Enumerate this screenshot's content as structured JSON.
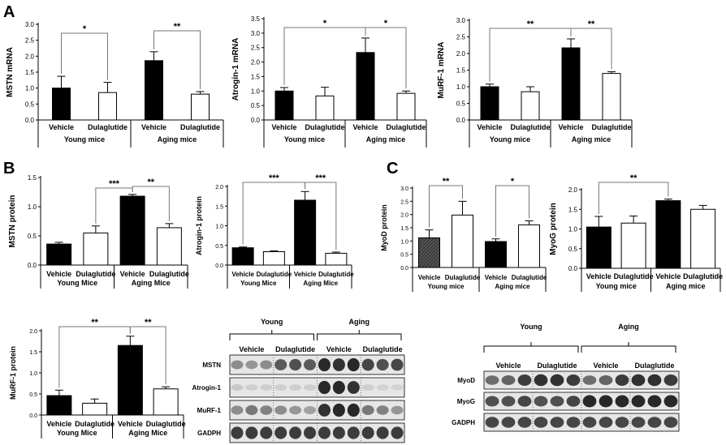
{
  "panel_labels": {
    "a": "A",
    "b": "B",
    "c": "C"
  },
  "blots": [
    {
      "lane_labels": [
        "Vehicle",
        "Dulaglutide",
        "Vehicle",
        "Dulaglutide"
      ],
      "group_labels": [
        "Young",
        "Aging"
      ],
      "bands": [
        {
          "name": "MSTN",
          "label": "MSTN",
          "intensities": [
            0.45,
            0.4,
            0.45,
            0.7,
            0.75,
            0.7,
            0.95,
            0.9,
            0.95,
            0.8,
            0.75,
            0.8
          ]
        },
        {
          "name": "Atrogin-1",
          "label": "Atrogin-1",
          "intensities": [
            0.15,
            0.12,
            0.12,
            0.12,
            0.12,
            0.12,
            0.95,
            0.95,
            0.9,
            0.12,
            0.1,
            0.1
          ]
        },
        {
          "name": "MuRF-1",
          "label": "MuRF-1",
          "intensities": [
            0.45,
            0.55,
            0.5,
            0.45,
            0.4,
            0.35,
            0.9,
            0.95,
            0.95,
            0.55,
            0.5,
            0.4
          ]
        },
        {
          "name": "GADPH",
          "label": "GADPH",
          "intensities": [
            0.85,
            0.85,
            0.85,
            0.85,
            0.85,
            0.85,
            0.85,
            0.85,
            0.85,
            0.85,
            0.85,
            0.85
          ]
        }
      ]
    },
    {
      "lane_labels": [
        "Vehicle",
        "Dulaglutide",
        "Vehicle",
        "Dulaglutide"
      ],
      "group_labels": [
        "Young",
        "Aging"
      ],
      "bands": [
        {
          "name": "MyoD",
          "label": "MyoD",
          "intensities": [
            0.6,
            0.65,
            0.85,
            0.9,
            0.9,
            0.85,
            0.6,
            0.65,
            0.85,
            0.9,
            0.9,
            0.85
          ]
        },
        {
          "name": "MyoG",
          "label": "MyoG",
          "intensities": [
            0.75,
            0.75,
            0.8,
            0.75,
            0.75,
            0.8,
            0.95,
            0.95,
            0.95,
            0.95,
            0.95,
            0.95
          ]
        },
        {
          "name": "GADPH",
          "label": "GADPH",
          "intensities": [
            0.8,
            0.8,
            0.8,
            0.8,
            0.8,
            0.8,
            0.8,
            0.8,
            0.8,
            0.8,
            0.8,
            0.8
          ]
        }
      ]
    }
  ],
  "chart_data": [
    {
      "id": "a1",
      "type": "bar",
      "ylabel": "MSTN mRNA",
      "ylim": [
        0,
        3
      ],
      "yticks": [
        "0.0",
        "0.5",
        "1.0",
        "1.5",
        "2.0",
        "2.5",
        "3.0"
      ],
      "categories": [
        "Vehicle",
        "Dulaglutide",
        "Vehicle",
        "Dulaglutide"
      ],
      "values": [
        1.0,
        0.86,
        1.86,
        0.81
      ],
      "errors": [
        0.37,
        0.32,
        0.28,
        0.08
      ],
      "fills": [
        "black",
        "white",
        "black",
        "white"
      ],
      "groups": [
        "Young mice",
        "Aging mice"
      ],
      "significance": [
        {
          "from": 0,
          "to": 1,
          "label": "*"
        },
        {
          "from": 2,
          "to": 3,
          "label": "**"
        }
      ]
    },
    {
      "id": "a2",
      "type": "bar",
      "ylabel": "Atrogin-1 mRNA",
      "ylim": [
        0,
        3.5
      ],
      "yticks": [
        "0.0",
        "0.5",
        "1.0",
        "1.5",
        "2.0",
        "2.5",
        "3.0",
        "3.5"
      ],
      "categories": [
        "Vehicle",
        "Dulaglutide",
        "Vehicle",
        "Dulaglutide"
      ],
      "values": [
        1.0,
        0.83,
        2.33,
        0.92
      ],
      "errors": [
        0.12,
        0.3,
        0.5,
        0.08
      ],
      "fills": [
        "black",
        "white",
        "black",
        "white"
      ],
      "groups": [
        "Young mice",
        "Aging mice"
      ],
      "significance": [
        {
          "from": 0,
          "to": 2,
          "label": "*"
        },
        {
          "from": 2,
          "to": 3,
          "label": "*"
        }
      ]
    },
    {
      "id": "a3",
      "type": "bar",
      "ylabel": "MuRF-1 mRNA",
      "ylim": [
        0,
        3
      ],
      "yticks": [
        "0.0",
        "0.5",
        "1.0",
        "1.5",
        "2.0",
        "2.5",
        "3.0"
      ],
      "categories": [
        "Vehicle",
        "Dulaglutide",
        "Vehicle",
        "Dulaglutide"
      ],
      "values": [
        1.0,
        0.85,
        2.17,
        1.4
      ],
      "errors": [
        0.08,
        0.15,
        0.27,
        0.05
      ],
      "fills": [
        "black",
        "white",
        "black",
        "white"
      ],
      "groups": [
        "Young mice",
        "Aging mice"
      ],
      "significance": [
        {
          "from": 0,
          "to": 2,
          "label": "**"
        },
        {
          "from": 2,
          "to": 3,
          "label": "**"
        }
      ]
    },
    {
      "id": "b1",
      "type": "bar",
      "ylabel": "MSTN protein",
      "ylim": [
        0,
        1.5
      ],
      "yticks": [
        "0.0",
        "0.5",
        "1.0",
        "1.5"
      ],
      "categories": [
        "Vehicle",
        "Dulaglutide",
        "Vehicle",
        "Dulaglutide"
      ],
      "values": [
        0.36,
        0.55,
        1.18,
        0.64
      ],
      "errors": [
        0.03,
        0.12,
        0.03,
        0.07
      ],
      "fills": [
        "black",
        "white",
        "black",
        "white"
      ],
      "groups": [
        "Young Mice",
        "Aging Mice"
      ],
      "significance": [
        {
          "from": 1,
          "to": 2,
          "label": "***"
        },
        {
          "from": 2,
          "to": 3,
          "label": "**"
        }
      ]
    },
    {
      "id": "b2",
      "type": "bar",
      "ylabel": "Atrogin-1 protein",
      "ylim": [
        0,
        2
      ],
      "yticks": [
        "0.0",
        "0.5",
        "1.0",
        "1.5",
        "2.0"
      ],
      "categories": [
        "Vehicle",
        "Dulaglutide",
        "Vehicle",
        "Dulaglutide"
      ],
      "values": [
        0.44,
        0.34,
        1.65,
        0.3
      ],
      "errors": [
        0.02,
        0.02,
        0.22,
        0.03
      ],
      "fills": [
        "black",
        "white",
        "black",
        "white"
      ],
      "groups": [
        "Young Mice",
        "Aging Mice"
      ],
      "significance": [
        {
          "from": 0,
          "to": 2,
          "label": "***"
        },
        {
          "from": 2,
          "to": 3,
          "label": "***"
        }
      ]
    },
    {
      "id": "b3",
      "type": "bar",
      "ylabel": "MuRF-1 protein",
      "ylim": [
        0,
        2
      ],
      "yticks": [
        "0.0",
        "0.5",
        "1.0",
        "1.5",
        "2.0"
      ],
      "categories": [
        "Vehicle",
        "Dulaglutide",
        "Vehicle",
        "Dulaglutide"
      ],
      "values": [
        0.46,
        0.28,
        1.65,
        0.62
      ],
      "errors": [
        0.13,
        0.1,
        0.22,
        0.05
      ],
      "fills": [
        "black",
        "white",
        "black",
        "white"
      ],
      "groups": [
        "Young Mice",
        "Aging Mice"
      ],
      "significance": [
        {
          "from": 0,
          "to": 2,
          "label": "**"
        },
        {
          "from": 2,
          "to": 3,
          "label": "**"
        }
      ]
    },
    {
      "id": "c1",
      "type": "bar",
      "ylabel": "MyoD protein",
      "ylim": [
        0,
        3
      ],
      "yticks": [
        "0.0",
        "0.5",
        "1.0",
        "1.5",
        "2.0",
        "2.5",
        "3.0"
      ],
      "categories": [
        "Vehicle",
        "Dulaglutide",
        "Vehicle",
        "Dulaglutide"
      ],
      "values": [
        1.12,
        1.98,
        0.98,
        1.61
      ],
      "errors": [
        0.3,
        0.52,
        0.1,
        0.15
      ],
      "fills": [
        "hatch",
        "white",
        "black",
        "white"
      ],
      "groups": [
        "Young mice",
        "Aging mice"
      ],
      "significance": [
        {
          "from": 0,
          "to": 1,
          "label": "**"
        },
        {
          "from": 2,
          "to": 3,
          "label": "*"
        }
      ]
    },
    {
      "id": "c2",
      "type": "bar",
      "ylabel": "MyoG protein",
      "ylim": [
        0,
        2
      ],
      "yticks": [
        "0.0",
        "0.5",
        "1.0",
        "1.5",
        "2.0"
      ],
      "categories": [
        "Vehicle",
        "Dulaglutide",
        "Vehicle",
        "Dulaglutide"
      ],
      "values": [
        1.05,
        1.15,
        1.72,
        1.5
      ],
      "errors": [
        0.27,
        0.18,
        0.04,
        0.1
      ],
      "fills": [
        "black",
        "white",
        "black",
        "white"
      ],
      "groups": [
        "Young mice",
        "Aging mice"
      ],
      "significance": [
        {
          "from": 0,
          "to": 2,
          "label": "**"
        }
      ]
    }
  ]
}
